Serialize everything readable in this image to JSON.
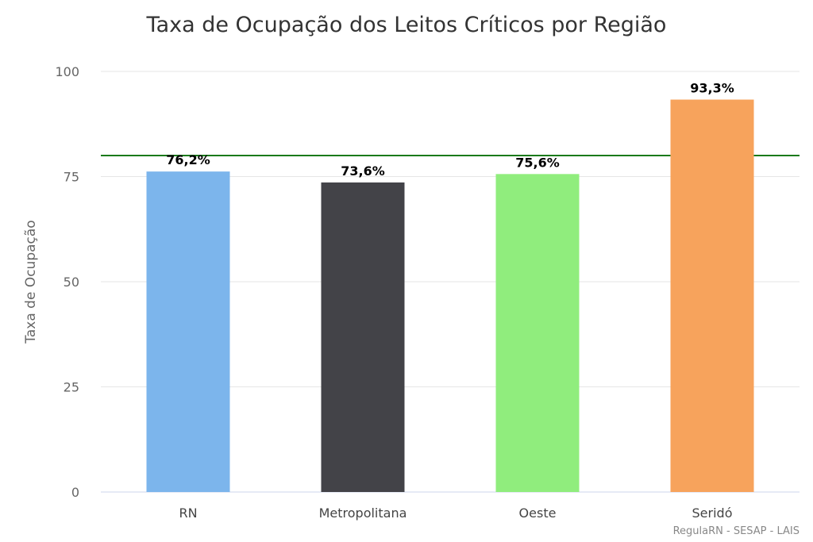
{
  "chart_data": {
    "type": "bar",
    "title": "Taxa de Ocupação dos Leitos Críticos por Região",
    "xlabel": "",
    "ylabel": "Taxa de Ocupação",
    "ylim": [
      0,
      100
    ],
    "yticks": [
      0,
      25,
      50,
      75,
      100
    ],
    "categories": [
      "RN",
      "Metropolitana",
      "Oeste",
      "Seridó"
    ],
    "values": [
      76.2,
      73.6,
      75.6,
      93.3
    ],
    "data_labels": [
      "76,2%",
      "73,6%",
      "75,6%",
      "93,3%"
    ],
    "colors": [
      "#7cb5ec",
      "#434348",
      "#90ed7d",
      "#f7a35c"
    ],
    "reference_line": {
      "value": 80,
      "color": "#1a7a1a"
    },
    "grid": true,
    "credits": "RegulaRN - SESAP - LAIS"
  }
}
